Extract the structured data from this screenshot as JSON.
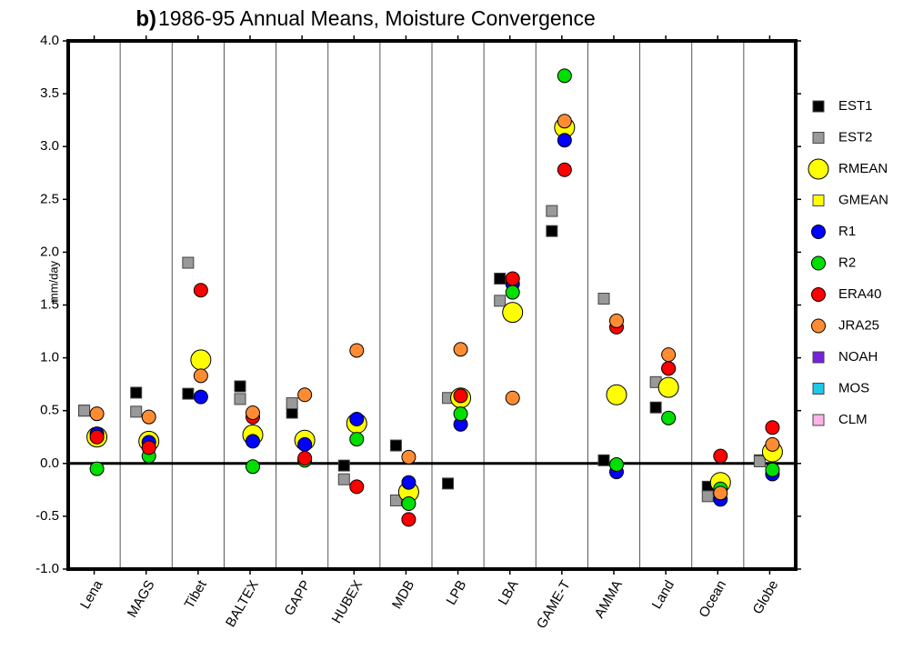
{
  "chart_data": {
    "type": "dot",
    "panel_label": "b)",
    "title": "1986-95 Annual Means, Moisture Convergence",
    "y_label": "mm/day",
    "categories": [
      "Lena",
      "MAGS",
      "Tibet",
      "BALTEX",
      "GAPP",
      "HUBEX",
      "MDB",
      "LPB",
      "LBA",
      "GAME-T",
      "AMMA",
      "Land",
      "Ocean",
      "Globe"
    ],
    "ylim": [
      -1,
      4
    ],
    "yticks": [
      {
        "value": -1,
        "label": "-1.0"
      },
      -0.5,
      {
        "value": 0,
        "label": "0.0"
      },
      0.5,
      {
        "value": 1,
        "label": "1.0"
      },
      1.5,
      {
        "value": 2,
        "label": "2.0"
      },
      2.5,
      {
        "value": 3,
        "label": "3.0"
      },
      3.5,
      {
        "value": 4,
        "label": "4.0"
      }
    ],
    "series": [
      {
        "name": "EST1",
        "color": "#000000",
        "marker": "square",
        "values": [
          0.5,
          0.67,
          0.66,
          0.73,
          0.48,
          -0.02,
          0.17,
          -0.19,
          1.75,
          2.2,
          0.03,
          0.53,
          -0.22,
          0.03
        ]
      },
      {
        "name": "EST2",
        "color": "#999999",
        "marker": "square",
        "values": [
          0.5,
          0.49,
          1.9,
          0.61,
          0.57,
          -0.15,
          -0.35,
          0.62,
          1.54,
          2.39,
          1.56,
          0.77,
          -0.31,
          0.02
        ]
      },
      {
        "name": "RMEAN",
        "color": "#ffff00",
        "marker": "large-circle",
        "values": [
          0.25,
          0.21,
          0.98,
          0.27,
          0.22,
          0.38,
          -0.27,
          0.62,
          1.43,
          3.18,
          0.65,
          0.72,
          -0.18,
          0.11
        ]
      },
      {
        "name": "GMEAN",
        "color": "#ffff00",
        "marker": "square",
        "values": [
          null,
          null,
          null,
          null,
          null,
          null,
          null,
          null,
          null,
          null,
          null,
          null,
          null,
          null
        ]
      },
      {
        "name": "R1",
        "color": "#0000ff",
        "marker": "circle",
        "values": [
          0.28,
          0.2,
          0.63,
          0.21,
          0.18,
          0.42,
          -0.18,
          0.37,
          1.7,
          3.06,
          -0.08,
          0.9,
          -0.34,
          -0.1
        ]
      },
      {
        "name": "R2",
        "color": "#00e000",
        "marker": "circle",
        "values": [
          -0.05,
          0.07,
          null,
          -0.03,
          0.03,
          0.23,
          -0.38,
          0.47,
          1.62,
          3.67,
          -0.01,
          0.43,
          -0.24,
          -0.06
        ]
      },
      {
        "name": "ERA40",
        "color": "#ff0000",
        "marker": "circle",
        "values": [
          0.25,
          0.15,
          1.64,
          0.44,
          0.05,
          -0.22,
          -0.53,
          0.64,
          1.75,
          2.78,
          1.29,
          0.9,
          0.07,
          0.34
        ]
      },
      {
        "name": "JRA25",
        "color": "#ff8c33",
        "marker": "circle",
        "values": [
          0.47,
          0.44,
          0.83,
          0.48,
          0.65,
          1.07,
          0.06,
          1.08,
          0.62,
          3.24,
          1.35,
          1.03,
          -0.28,
          0.18
        ]
      },
      {
        "name": "NOAH",
        "color": "#7a1fe0",
        "marker": "square",
        "values": [
          null,
          null,
          null,
          null,
          null,
          null,
          null,
          null,
          null,
          null,
          null,
          null,
          null,
          null
        ]
      },
      {
        "name": "MOS",
        "color": "#1ec8e6",
        "marker": "square",
        "values": [
          null,
          null,
          null,
          null,
          null,
          null,
          null,
          null,
          null,
          null,
          null,
          null,
          null,
          null
        ]
      },
      {
        "name": "CLM",
        "color": "#ffb3e6",
        "marker": "square",
        "values": [
          null,
          null,
          null,
          null,
          null,
          null,
          null,
          null,
          null,
          null,
          null,
          null,
          null,
          null
        ]
      }
    ]
  }
}
